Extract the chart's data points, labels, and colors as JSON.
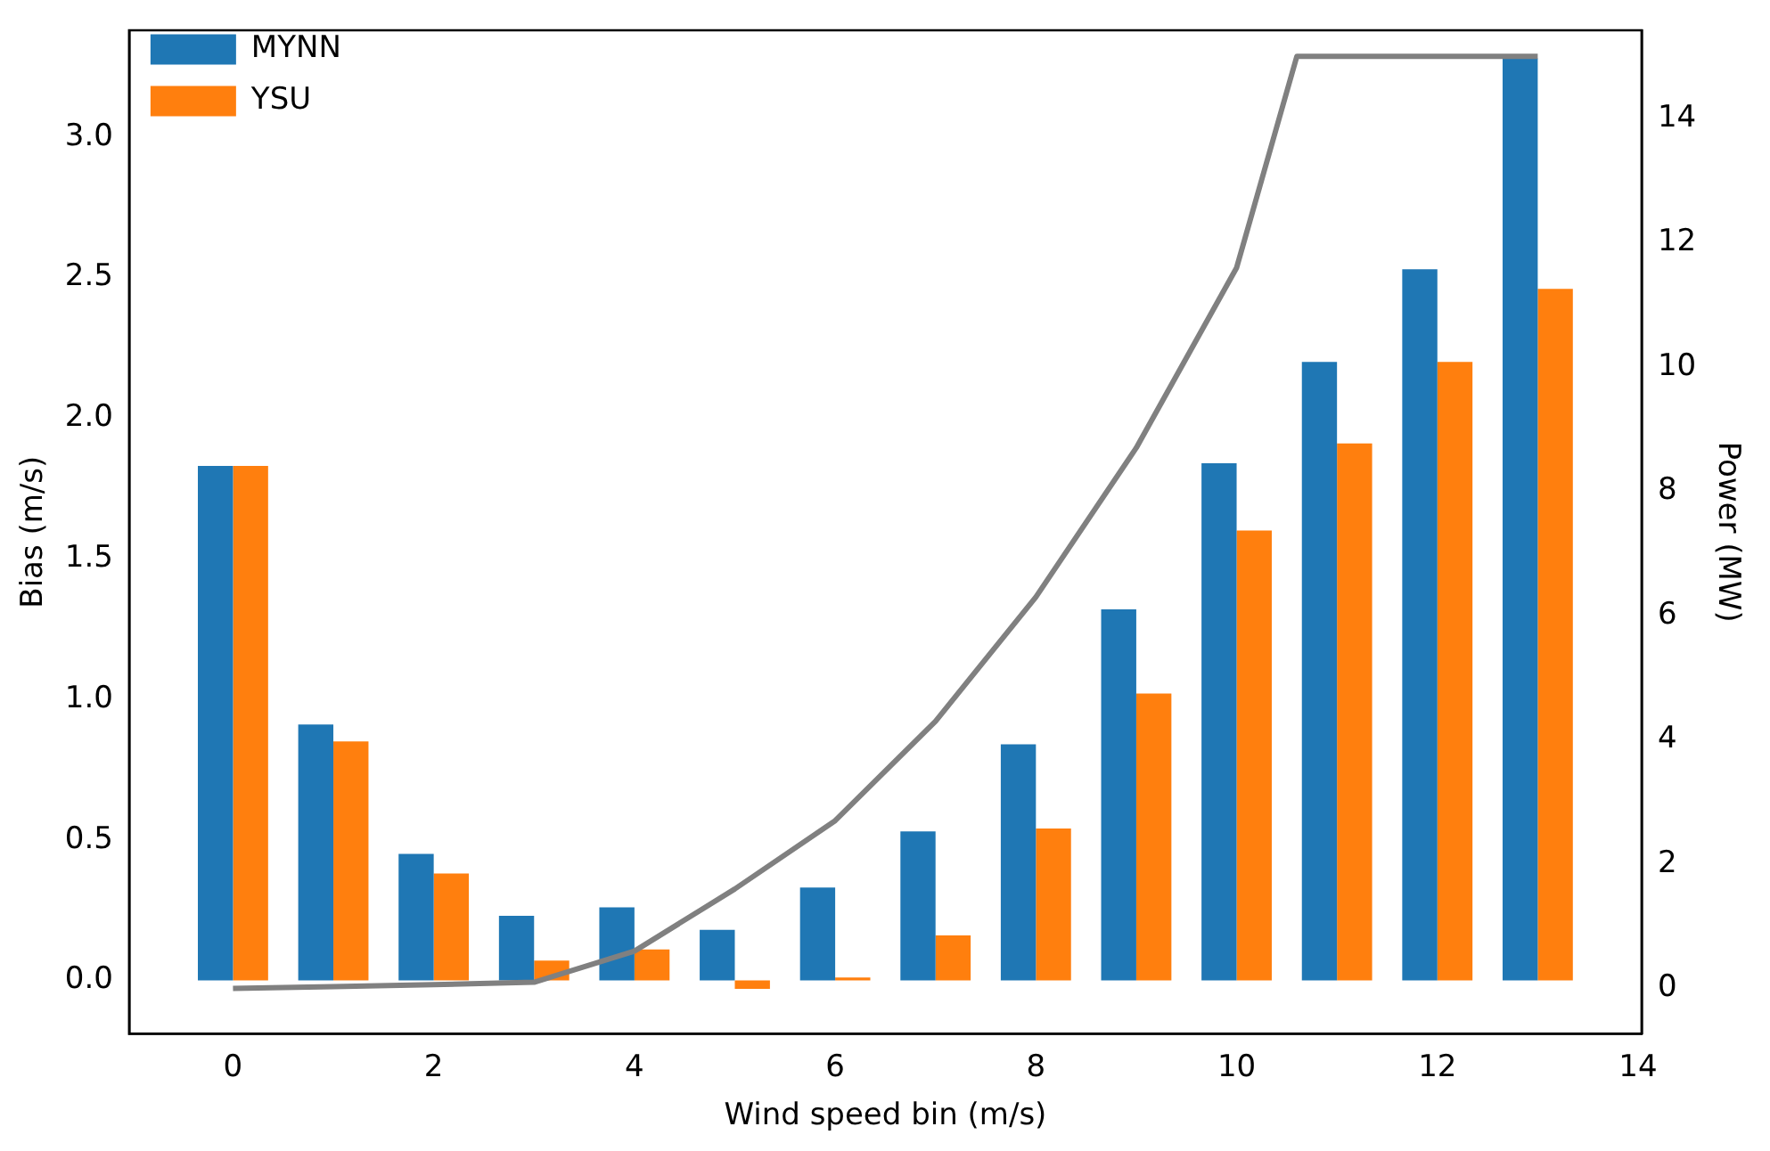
{
  "chart_data": {
    "type": "bar",
    "xlabel": "Wind speed bin (m/s)",
    "ylabel": "Bias (m/s)",
    "y2label": "Power (MW)",
    "x": [
      0,
      1,
      2,
      3,
      4,
      5,
      6,
      7,
      8,
      9,
      10,
      11,
      12,
      13
    ],
    "series": [
      {
        "name": "MYNN",
        "color": "#1f77b4",
        "values": [
          1.83,
          0.91,
          0.45,
          0.23,
          0.26,
          0.18,
          0.33,
          0.53,
          0.84,
          1.32,
          1.84,
          2.2,
          2.53,
          3.28
        ]
      },
      {
        "name": "YSU",
        "color": "#ff7f0e",
        "values": [
          1.83,
          0.85,
          0.38,
          0.07,
          0.11,
          -0.03,
          0.01,
          0.16,
          0.54,
          1.02,
          1.6,
          1.91,
          2.2,
          2.46
        ]
      },
      {
        "type": "line",
        "axis": "y2",
        "color": "#808080",
        "x": [
          0,
          1,
          2,
          3,
          4,
          5,
          6,
          7,
          8,
          9,
          10,
          10.6,
          11,
          12,
          13
        ],
        "values": [
          0,
          0.03,
          0.06,
          0.1,
          0.6,
          1.6,
          2.7,
          4.3,
          6.3,
          8.7,
          11.6,
          15,
          15,
          15,
          15
        ]
      }
    ],
    "xlim": [
      -1.035,
      14.035
    ],
    "xticks": [
      0,
      2,
      4,
      6,
      8,
      10,
      12,
      14
    ],
    "ylim": [
      -0.19,
      3.38
    ],
    "yticks": [
      {
        "value": 0,
        "label": "0.0"
      },
      {
        "value": 0.5,
        "label": "0.5"
      },
      {
        "value": 1,
        "label": "1.0"
      },
      {
        "value": 1.5,
        "label": "1.5"
      },
      {
        "value": 2,
        "label": "2.0"
      },
      {
        "value": 2.5,
        "label": "2.5"
      },
      {
        "value": 3,
        "label": "3.0"
      }
    ],
    "y2lim": [
      -0.73,
      15.42
    ],
    "y2ticks": [
      0,
      2,
      4,
      6,
      8,
      10,
      12,
      14
    ],
    "legend": "top left",
    "grid": false
  }
}
